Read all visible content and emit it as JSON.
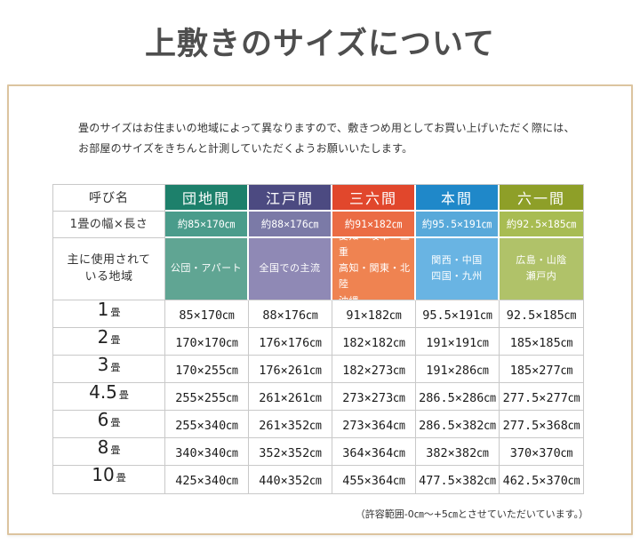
{
  "page": {
    "title": "上敷きのサイズについて",
    "intro_line1": "畳のサイズはお住まいの地域によって異なりますので、敷きつめ用としてお買い上げいただく際には、",
    "intro_line2": "お部屋のサイズをきちんと計測していただくようお願いいたします。",
    "footnote": "（許容範囲-0㎝～+5㎝とさせていただいています。）",
    "colors": {
      "box_border": "#dcc49f",
      "table_border": "#c9c9c9",
      "title_text": "#4e4e4e"
    }
  },
  "table": {
    "corner_header": "呼び名",
    "row_labels": {
      "width_length": "1畳の幅×長さ",
      "regions": "主に使用されて\nいる地域"
    },
    "columns": [
      {
        "name": "団地間",
        "width_length": "約85×170㎝",
        "regions": "公団・アパート",
        "region_align": "center",
        "header_color": "#1d806b",
        "width_color": "#4a9c8b",
        "region_color": "#60a593"
      },
      {
        "name": "江戸間",
        "width_length": "約88×176㎝",
        "regions": "全国での主流",
        "region_align": "center",
        "header_color": "#4c4a81",
        "width_color": "#7b7aa7",
        "region_color": "#8f89b5"
      },
      {
        "name": "三六間",
        "width_length": "約91×182㎝",
        "regions": "愛知・岐阜・三重\n高知・関東・北陸\n沖縄",
        "region_align": "left",
        "header_color": "#e1472c",
        "width_color": "#eb6c44",
        "region_color": "#ef8351"
      },
      {
        "name": "本間",
        "width_length": "約95.5×191㎝",
        "regions": "関西・中国\n四国・九州",
        "region_align": "center",
        "header_color": "#1f88c9",
        "width_color": "#58a9da",
        "region_color": "#69b4e3"
      },
      {
        "name": "六一間",
        "width_length": "約92.5×185㎝",
        "regions": "広島・山陰\n瀬戸内",
        "region_align": "center",
        "header_color": "#8e9f28",
        "width_color": "#a8bc52",
        "region_color": "#b0c269"
      }
    ],
    "size_rows": [
      {
        "count": "1",
        "unit": "畳",
        "values": [
          "85×170㎝",
          "88×176㎝",
          "91×182㎝",
          "95.5×191㎝",
          "92.5×185㎝"
        ]
      },
      {
        "count": "2",
        "unit": "畳",
        "values": [
          "170×170㎝",
          "176×176㎝",
          "182×182㎝",
          "191×191㎝",
          "185×185㎝"
        ]
      },
      {
        "count": "3",
        "unit": "畳",
        "values": [
          "170×255㎝",
          "176×261㎝",
          "182×273㎝",
          "191×286㎝",
          "185×277㎝"
        ]
      },
      {
        "count": "4.5",
        "unit": "畳",
        "values": [
          "255×255㎝",
          "261×261㎝",
          "273×273㎝",
          "286.5×286㎝",
          "277.5×277㎝"
        ]
      },
      {
        "count": "6",
        "unit": "畳",
        "values": [
          "255×340㎝",
          "261×352㎝",
          "273×364㎝",
          "286.5×382㎝",
          "277.5×368㎝"
        ]
      },
      {
        "count": "8",
        "unit": "畳",
        "values": [
          "340×340㎝",
          "352×352㎝",
          "364×364㎝",
          "382×382㎝",
          "370×370㎝"
        ]
      },
      {
        "count": "10",
        "unit": "畳",
        "values": [
          "425×340㎝",
          "440×352㎝",
          "455×364㎝",
          "477.5×382㎝",
          "462.5×370㎝"
        ]
      }
    ]
  }
}
